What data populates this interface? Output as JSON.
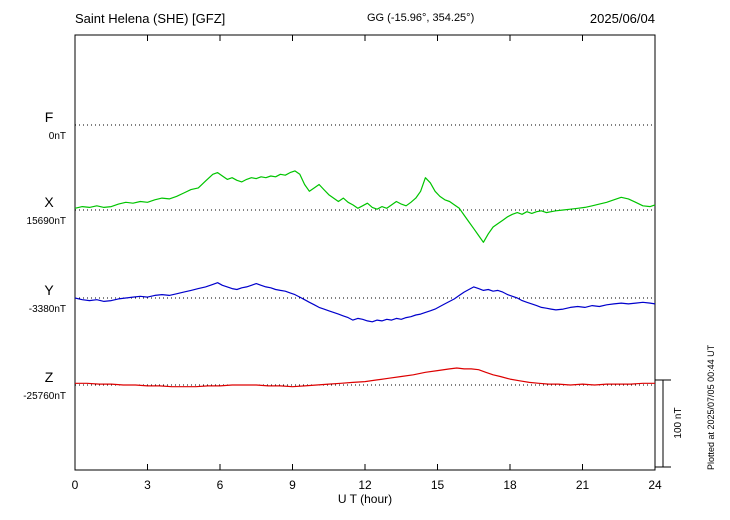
{
  "header": {
    "station": "Saint Helena (SHE)  [GFZ]",
    "coords": "GG (-15.96°, 354.25°)",
    "date": "2025/06/04"
  },
  "footer": {
    "plotted_note": "Plotted at 2025/07/05 00:44 UT"
  },
  "chart_data": {
    "type": "line",
    "title": "Saint Helena (SHE)  [GFZ]",
    "date": "2025/06/04",
    "xlabel": "U T (hour)",
    "x_unit": "hour UT",
    "x_range": [
      0,
      24
    ],
    "x_ticks": [
      "0",
      "3",
      "6",
      "9",
      "12",
      "15",
      "18",
      "21",
      "24"
    ],
    "grid": "dotted baselines per component",
    "legend_position": "left labels",
    "scale_bar": {
      "label": "100 nT",
      "nT": 100
    },
    "tracks": [
      {
        "id": "F",
        "label": "F",
        "baseline_label": "0nT",
        "baseline_value_nT": 0,
        "color": "#FFA500",
        "points": []
      },
      {
        "id": "X",
        "label": "X",
        "baseline_label": "15690nT",
        "baseline_value_nT": 15690,
        "color": "#00C400",
        "points": [
          [
            0,
            2
          ],
          [
            0.3,
            4
          ],
          [
            0.6,
            3
          ],
          [
            0.9,
            5
          ],
          [
            1.2,
            3
          ],
          [
            1.5,
            4
          ],
          [
            1.8,
            7
          ],
          [
            2.1,
            9
          ],
          [
            2.4,
            8
          ],
          [
            2.7,
            10
          ],
          [
            3,
            9
          ],
          [
            3.3,
            12
          ],
          [
            3.6,
            14
          ],
          [
            3.9,
            13
          ],
          [
            4.2,
            16
          ],
          [
            4.5,
            20
          ],
          [
            4.8,
            24
          ],
          [
            5.1,
            26
          ],
          [
            5.4,
            34
          ],
          [
            5.7,
            42
          ],
          [
            5.9,
            44
          ],
          [
            6.1,
            40
          ],
          [
            6.3,
            36
          ],
          [
            6.5,
            38
          ],
          [
            6.7,
            35
          ],
          [
            6.9,
            33
          ],
          [
            7.1,
            36
          ],
          [
            7.3,
            38
          ],
          [
            7.5,
            37
          ],
          [
            7.7,
            39
          ],
          [
            7.9,
            38
          ],
          [
            8.1,
            40
          ],
          [
            8.3,
            39
          ],
          [
            8.5,
            42
          ],
          [
            8.7,
            41
          ],
          [
            8.9,
            44
          ],
          [
            9.1,
            46
          ],
          [
            9.3,
            42
          ],
          [
            9.5,
            30
          ],
          [
            9.7,
            22
          ],
          [
            9.9,
            26
          ],
          [
            10.1,
            30
          ],
          [
            10.3,
            24
          ],
          [
            10.5,
            18
          ],
          [
            10.7,
            14
          ],
          [
            10.9,
            10
          ],
          [
            11.1,
            14
          ],
          [
            11.3,
            9
          ],
          [
            11.5,
            6
          ],
          [
            11.7,
            2
          ],
          [
            11.9,
            5
          ],
          [
            12.1,
            8
          ],
          [
            12.3,
            3
          ],
          [
            12.5,
            1
          ],
          [
            12.7,
            4
          ],
          [
            12.9,
            2
          ],
          [
            13.1,
            6
          ],
          [
            13.3,
            10
          ],
          [
            13.5,
            7
          ],
          [
            13.7,
            5
          ],
          [
            13.9,
            9
          ],
          [
            14.1,
            14
          ],
          [
            14.3,
            22
          ],
          [
            14.5,
            38
          ],
          [
            14.7,
            32
          ],
          [
            14.9,
            22
          ],
          [
            15.1,
            16
          ],
          [
            15.3,
            12
          ],
          [
            15.5,
            10
          ],
          [
            15.7,
            6
          ],
          [
            15.9,
            2
          ],
          [
            16.1,
            -6
          ],
          [
            16.3,
            -14
          ],
          [
            16.5,
            -22
          ],
          [
            16.7,
            -30
          ],
          [
            16.9,
            -38
          ],
          [
            17.1,
            -28
          ],
          [
            17.3,
            -20
          ],
          [
            17.5,
            -16
          ],
          [
            17.7,
            -12
          ],
          [
            17.9,
            -8
          ],
          [
            18.1,
            -5
          ],
          [
            18.3,
            -3
          ],
          [
            18.5,
            -5
          ],
          [
            18.7,
            -2
          ],
          [
            18.9,
            -4
          ],
          [
            19.1,
            -2
          ],
          [
            19.3,
            -1
          ],
          [
            19.5,
            -3
          ],
          [
            19.7,
            -2
          ],
          [
            19.9,
            -1
          ],
          [
            20.2,
            0
          ],
          [
            20.5,
            1
          ],
          [
            20.8,
            2
          ],
          [
            21.1,
            3
          ],
          [
            21.4,
            5
          ],
          [
            21.7,
            7
          ],
          [
            22,
            9
          ],
          [
            22.3,
            12
          ],
          [
            22.6,
            15
          ],
          [
            22.9,
            13
          ],
          [
            23.2,
            9
          ],
          [
            23.5,
            5
          ],
          [
            23.8,
            4
          ],
          [
            24,
            6
          ]
        ]
      },
      {
        "id": "Y",
        "label": "Y",
        "baseline_label": "-3380nT",
        "baseline_value_nT": -3380,
        "color": "#0000CC",
        "points": [
          [
            0,
            0
          ],
          [
            0.3,
            -2
          ],
          [
            0.6,
            -3
          ],
          [
            0.9,
            -2
          ],
          [
            1.2,
            -4
          ],
          [
            1.5,
            -3
          ],
          [
            1.8,
            -1
          ],
          [
            2.1,
            0
          ],
          [
            2.4,
            1
          ],
          [
            2.7,
            2
          ],
          [
            3,
            1
          ],
          [
            3.3,
            3
          ],
          [
            3.6,
            4
          ],
          [
            3.9,
            3
          ],
          [
            4.2,
            5
          ],
          [
            4.5,
            7
          ],
          [
            4.8,
            9
          ],
          [
            5.1,
            11
          ],
          [
            5.4,
            13
          ],
          [
            5.7,
            16
          ],
          [
            5.9,
            18
          ],
          [
            6.1,
            15
          ],
          [
            6.3,
            13
          ],
          [
            6.5,
            11
          ],
          [
            6.7,
            10
          ],
          [
            6.9,
            12
          ],
          [
            7.1,
            13
          ],
          [
            7.3,
            15
          ],
          [
            7.5,
            17
          ],
          [
            7.7,
            15
          ],
          [
            7.9,
            13
          ],
          [
            8.1,
            12
          ],
          [
            8.3,
            10
          ],
          [
            8.5,
            9
          ],
          [
            8.7,
            8
          ],
          [
            8.9,
            6
          ],
          [
            9.1,
            4
          ],
          [
            9.3,
            1
          ],
          [
            9.5,
            -2
          ],
          [
            9.7,
            -5
          ],
          [
            9.9,
            -8
          ],
          [
            10.1,
            -11
          ],
          [
            10.3,
            -13
          ],
          [
            10.5,
            -15
          ],
          [
            10.7,
            -17
          ],
          [
            10.9,
            -19
          ],
          [
            11.1,
            -21
          ],
          [
            11.3,
            -23
          ],
          [
            11.5,
            -26
          ],
          [
            11.7,
            -24
          ],
          [
            11.9,
            -25
          ],
          [
            12.1,
            -27
          ],
          [
            12.3,
            -28
          ],
          [
            12.5,
            -26
          ],
          [
            12.7,
            -27
          ],
          [
            12.9,
            -25
          ],
          [
            13.1,
            -26
          ],
          [
            13.3,
            -24
          ],
          [
            13.5,
            -25
          ],
          [
            13.7,
            -23
          ],
          [
            13.9,
            -22
          ],
          [
            14.1,
            -20
          ],
          [
            14.3,
            -19
          ],
          [
            14.5,
            -17
          ],
          [
            14.7,
            -15
          ],
          [
            14.9,
            -13
          ],
          [
            15.1,
            -10
          ],
          [
            15.3,
            -7
          ],
          [
            15.5,
            -4
          ],
          [
            15.7,
            -1
          ],
          [
            15.9,
            3
          ],
          [
            16.1,
            7
          ],
          [
            16.3,
            10
          ],
          [
            16.5,
            13
          ],
          [
            16.7,
            11
          ],
          [
            16.9,
            9
          ],
          [
            17.1,
            10
          ],
          [
            17.3,
            8
          ],
          [
            17.5,
            9
          ],
          [
            17.7,
            7
          ],
          [
            17.9,
            4
          ],
          [
            18.1,
            2
          ],
          [
            18.3,
            0
          ],
          [
            18.5,
            -3
          ],
          [
            18.7,
            -5
          ],
          [
            18.9,
            -7
          ],
          [
            19.1,
            -9
          ],
          [
            19.3,
            -11
          ],
          [
            19.5,
            -12
          ],
          [
            19.7,
            -13
          ],
          [
            19.9,
            -14
          ],
          [
            20.2,
            -13
          ],
          [
            20.5,
            -11
          ],
          [
            20.8,
            -10
          ],
          [
            21.1,
            -11
          ],
          [
            21.4,
            -9
          ],
          [
            21.7,
            -10
          ],
          [
            22,
            -8
          ],
          [
            22.3,
            -7
          ],
          [
            22.6,
            -6
          ],
          [
            22.9,
            -7
          ],
          [
            23.2,
            -6
          ],
          [
            23.5,
            -5
          ],
          [
            23.8,
            -6
          ],
          [
            24,
            -7
          ]
        ]
      },
      {
        "id": "Z",
        "label": "Z",
        "baseline_label": "-25760nT",
        "baseline_value_nT": -25760,
        "color": "#DD0000",
        "points": [
          [
            0,
            2
          ],
          [
            0.5,
            2
          ],
          [
            1,
            1
          ],
          [
            1.5,
            1
          ],
          [
            2,
            0
          ],
          [
            2.5,
            0
          ],
          [
            3,
            -1
          ],
          [
            3.5,
            -1
          ],
          [
            4,
            -2
          ],
          [
            4.5,
            -2
          ],
          [
            5,
            -2
          ],
          [
            5.5,
            -1
          ],
          [
            6,
            -1
          ],
          [
            6.5,
            0
          ],
          [
            7,
            0
          ],
          [
            7.5,
            0
          ],
          [
            8,
            -1
          ],
          [
            8.5,
            -1
          ],
          [
            9,
            -2
          ],
          [
            9.5,
            -1
          ],
          [
            10,
            0
          ],
          [
            10.5,
            1
          ],
          [
            11,
            2
          ],
          [
            11.5,
            3
          ],
          [
            12,
            4
          ],
          [
            12.5,
            6
          ],
          [
            13,
            8
          ],
          [
            13.5,
            10
          ],
          [
            14,
            12
          ],
          [
            14.5,
            15
          ],
          [
            15,
            17
          ],
          [
            15.5,
            19
          ],
          [
            15.8,
            20
          ],
          [
            16.1,
            19
          ],
          [
            16.4,
            19
          ],
          [
            16.7,
            18
          ],
          [
            17,
            15
          ],
          [
            17.3,
            12
          ],
          [
            17.6,
            10
          ],
          [
            18,
            7
          ],
          [
            18.4,
            5
          ],
          [
            18.8,
            3
          ],
          [
            19.2,
            2
          ],
          [
            19.6,
            1
          ],
          [
            20,
            1
          ],
          [
            20.5,
            0
          ],
          [
            21,
            1
          ],
          [
            21.5,
            0
          ],
          [
            22,
            1
          ],
          [
            22.5,
            1
          ],
          [
            23,
            1
          ],
          [
            23.5,
            2
          ],
          [
            24,
            2
          ]
        ]
      }
    ]
  }
}
